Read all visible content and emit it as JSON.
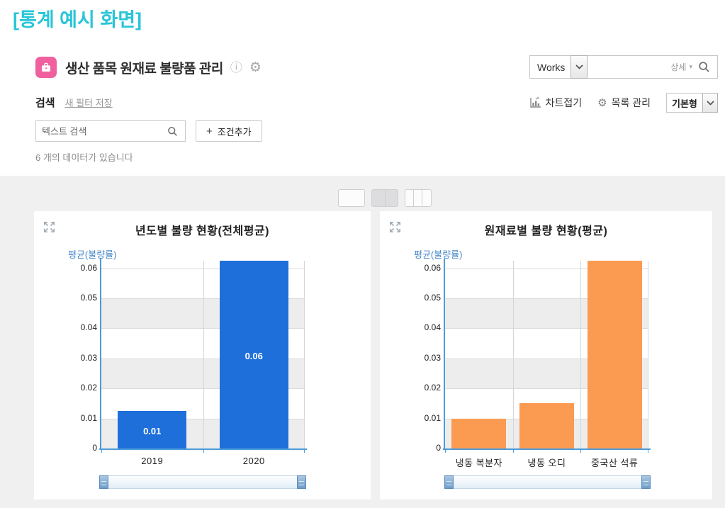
{
  "page": {
    "title": "[통계 예시 화면]"
  },
  "header": {
    "app_title": "생산 품목 원재료 불량품 관리",
    "works_label": "Works",
    "detail_label": "상세"
  },
  "toolbar": {
    "search_label": "검색",
    "save_filter_label": "새 필터 저장",
    "chart_collapse_label": "차트접기",
    "list_manage_label": "목록 관리",
    "view_type_value": "기본형"
  },
  "filters": {
    "text_search_placeholder": "텍스트 검색",
    "add_condition_plus": "+",
    "add_condition_label": "조건추가"
  },
  "status": {
    "data_count_text": "6 개의 데이터가 있습니다"
  },
  "colors": {
    "accent_cyan": "#29c5d8",
    "app_icon_pink": "#f0609f",
    "bar_blue": "#1e6fd9",
    "bar_orange": "#fb9a51",
    "axis_blue": "#4e9bd8",
    "ylabel_blue": "#4686c8",
    "panel_gray": "#f0f0f1"
  },
  "chart_data": [
    {
      "type": "bar",
      "title": "년도별 불량 현황(전체평균)",
      "ylabel": "평균(불량률)",
      "categories": [
        "2019",
        "2020"
      ],
      "values": [
        0.0125,
        0.0625
      ],
      "data_labels": [
        "0.01",
        "0.06"
      ],
      "bar_color": "#1e6fd9",
      "ylim": [
        0,
        0.0625
      ],
      "yticks": [
        0,
        0.01,
        0.02,
        0.03,
        0.04,
        0.05,
        0.06
      ],
      "ytick_labels": [
        "0",
        "0.01",
        "0.02",
        "0.03",
        "0.04",
        "0.05",
        "0.06"
      ],
      "grid": "alternating horizontal bands, light vertical separators",
      "legend": "none"
    },
    {
      "type": "bar",
      "title": "원재료별 불량 현황(평균)",
      "ylabel": "평균(불량률)",
      "categories": [
        "냉동 복분자",
        "냉동 오디",
        "중국산 석류"
      ],
      "values": [
        0.01,
        0.015,
        0.0625
      ],
      "data_labels": [
        "",
        "",
        ""
      ],
      "bar_color": "#fb9a51",
      "ylim": [
        0,
        0.0625
      ],
      "yticks": [
        0,
        0.01,
        0.02,
        0.03,
        0.04,
        0.05,
        0.06
      ],
      "ytick_labels": [
        "0",
        "0.01",
        "0.02",
        "0.03",
        "0.04",
        "0.05",
        "0.06"
      ],
      "grid": "alternating horizontal bands, light vertical separators",
      "legend": "none"
    }
  ]
}
